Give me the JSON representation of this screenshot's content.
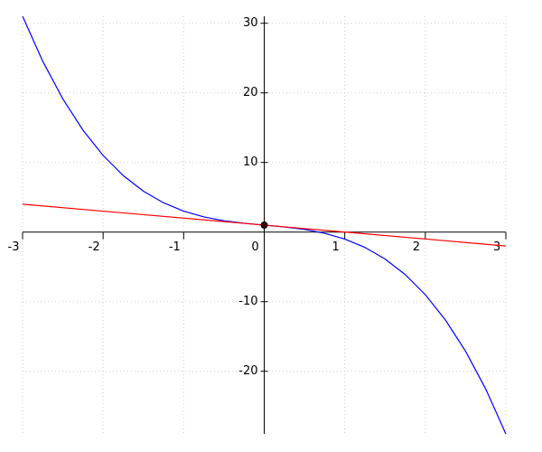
{
  "chart_data": {
    "type": "line",
    "xlim": [
      -3,
      3
    ],
    "ylim": [
      -29,
      31
    ],
    "xticks": [
      -3,
      -2,
      -1,
      0,
      1,
      2,
      3
    ],
    "yticks": [
      -20,
      -10,
      10,
      20,
      30
    ],
    "grid": true,
    "series": [
      {
        "color": "#0000ff",
        "x": [
          -3,
          -2.75,
          -2.5,
          -2.25,
          -2,
          -1.75,
          -1.5,
          -1.25,
          -1,
          -0.75,
          -0.5,
          -0.25,
          0,
          0.25,
          0.5,
          0.75,
          1,
          1.25,
          1.5,
          1.75,
          2,
          2.25,
          2.5,
          2.75,
          3
        ],
        "values": [
          31,
          24.547,
          19.125,
          14.641,
          11,
          8.109,
          5.875,
          4.203,
          3,
          2.172,
          1.625,
          1.266,
          1,
          0.734,
          0.375,
          -0.172,
          -1,
          -2.203,
          -3.875,
          -6.109,
          -9,
          -12.641,
          -17.125,
          -22.547,
          -29
        ]
      },
      {
        "color": "#ff0000",
        "x": [
          -3,
          3
        ],
        "values": [
          4,
          -2
        ]
      }
    ],
    "markers": {
      "color": "#400000",
      "x": [
        0
      ],
      "values": [
        1
      ]
    }
  }
}
